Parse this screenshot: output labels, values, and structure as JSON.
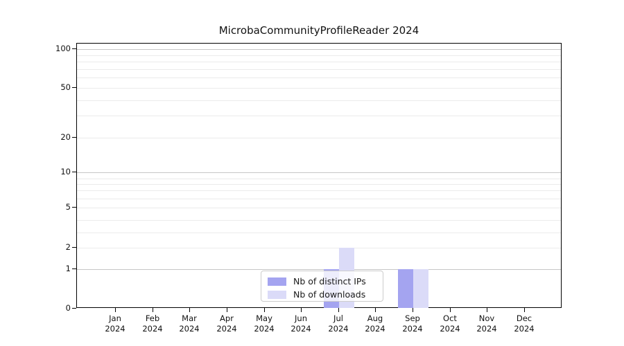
{
  "chart_data": {
    "type": "bar",
    "title": "MicrobaCommunityProfileReader 2024",
    "categories": [
      "Jan",
      "Feb",
      "Mar",
      "Apr",
      "May",
      "Jun",
      "Jul",
      "Aug",
      "Sep",
      "Oct",
      "Nov",
      "Dec"
    ],
    "category_year_suffix": "2024",
    "series": [
      {
        "name": "Nb of distinct IPs",
        "color": "#a4a4f0",
        "values": [
          0,
          0,
          0,
          0,
          0,
          0,
          1,
          0,
          1,
          0,
          0,
          0
        ]
      },
      {
        "name": "Nb of downloads",
        "color": "#dbdbf8",
        "values": [
          0,
          0,
          0,
          0,
          0,
          0,
          2,
          0,
          1,
          0,
          0,
          0
        ]
      }
    ],
    "xlabel": "",
    "ylabel": "",
    "y_axis": {
      "scale": "symlog",
      "tick_labels": [
        "100",
        "50",
        "20",
        "10",
        "5",
        "2",
        "1",
        "0"
      ],
      "tick_values": [
        100,
        50,
        20,
        10,
        5,
        2,
        1,
        0
      ],
      "range": [
        0,
        115
      ]
    },
    "grid": "horizontal major (#c6c6c6) and log minor (#ebebeb) lines, on",
    "legend_position": "lower center inside plot",
    "colors": {
      "distinct_ips_bar": "#a4a4f0",
      "downloads_bar": "#dbdbf8",
      "axis": "#000000",
      "major_grid": "#c6c6c6",
      "minor_grid": "#ebebeb"
    }
  }
}
